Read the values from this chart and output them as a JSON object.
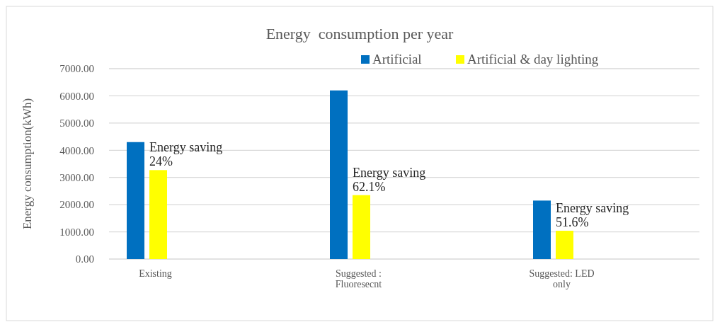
{
  "chart_data": {
    "type": "bar",
    "title": "Energy  consumption per year",
    "ylabel": "Energy consumption(kWh)",
    "categories": [
      "Existing",
      "Suggested : Fluoresecnt",
      "Suggested: LED only"
    ],
    "series": [
      {
        "name": "Artificial",
        "color": "#0070c0",
        "values": [
          4300,
          6200,
          2150
        ]
      },
      {
        "name": "Artificial & day lighting",
        "color": "#ffff00",
        "values": [
          3270,
          2350,
          1040
        ]
      }
    ],
    "ylim": [
      0,
      7000
    ],
    "yticks": [
      {
        "value": 0,
        "label": "0.00"
      },
      {
        "value": 1000,
        "label": "1000.00"
      },
      {
        "value": 2000,
        "label": "2000.00"
      },
      {
        "value": 3000,
        "label": "3000.00"
      },
      {
        "value": 4000,
        "label": "4000.00"
      },
      {
        "value": 5000,
        "label": "5000.00"
      },
      {
        "value": 6000,
        "label": "6000.00"
      },
      {
        "value": 7000,
        "label": "7000.00"
      }
    ],
    "grid": "y",
    "legend": "top right",
    "annotations": [
      {
        "text": "Energy saving 24%",
        "x": "Existing",
        "y": 3270
      },
      {
        "text": "Energy saving 62.1%",
        "x": "Suggested : Fluoresecnt",
        "y": 2350
      },
      {
        "text": "Energy saving 51.6%",
        "x": "Suggested: LED only",
        "y": 1040
      }
    ]
  }
}
